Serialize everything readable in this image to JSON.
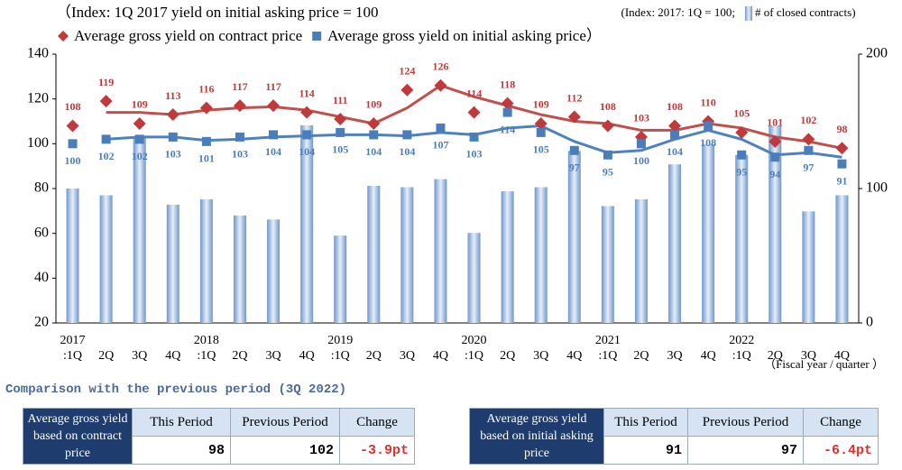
{
  "chart_data": {
    "type": "bar-line",
    "subtitle": "（Index: 1Q 2017 yield on initial asking price = 100",
    "note": "(Index: 2017: 1Q = 100;",
    "x_label": "（Fiscal year / quarter ）",
    "categories": [
      ":1Q",
      "2Q",
      "3Q",
      "4Q",
      ":1Q",
      "2Q",
      "3Q",
      "4Q",
      ":1Q",
      "2Q",
      "3Q",
      "4Q",
      ":1Q",
      "2Q",
      "3Q",
      "4Q",
      ":1Q",
      "2Q",
      "3Q",
      "4Q",
      ":1Q",
      "2Q",
      "3Q",
      "4Q"
    ],
    "year_labels": [
      "2017",
      null,
      null,
      null,
      "2018",
      null,
      null,
      null,
      "2019",
      null,
      null,
      null,
      "2020",
      null,
      null,
      null,
      "2021",
      null,
      null,
      null,
      "2022",
      null,
      null,
      null
    ],
    "series": [
      {
        "name": "# of closed contracts)",
        "color": "#8fb1dc",
        "axis": "y2",
        "marker": "bar",
        "values": [
          100,
          95,
          138,
          88,
          92,
          80,
          77,
          147,
          65,
          102,
          101,
          107,
          67,
          98,
          101,
          128,
          87,
          92,
          118,
          133,
          125,
          147,
          83,
          95
        ]
      },
      {
        "name": "Average gross yield on contract price",
        "color": "#c0393b",
        "marker": "diamond",
        "values": [
          108,
          119,
          109,
          113,
          116,
          117,
          117,
          114,
          111,
          109,
          124,
          126,
          114,
          118,
          109,
          112,
          108,
          103,
          108,
          110,
          105,
          101,
          102,
          98
        ]
      },
      {
        "name": "Average gross yield on initial asking price）",
        "color": "#4a7ebb",
        "marker": "square",
        "values": [
          100,
          102,
          102,
          103,
          101,
          103,
          104,
          104,
          105,
          104,
          104,
          107,
          103,
          114,
          105,
          97,
          95,
          100,
          104,
          108,
          95,
          94,
          97,
          91
        ]
      }
    ],
    "trend_lines": [
      {
        "color": "#c0504d",
        "values": [
          null,
          114,
          114,
          113,
          115,
          116,
          116.5,
          115,
          112,
          109,
          116,
          126,
          121,
          117,
          113,
          110,
          109,
          106,
          106,
          109,
          107,
          103,
          101,
          98
        ]
      },
      {
        "color": "#4f81bd",
        "values": [
          null,
          102,
          103,
          103,
          101.5,
          102,
          103,
          103.5,
          104,
          104,
          103.5,
          105,
          104,
          107,
          108,
          101,
          96,
          97,
          102,
          106,
          102,
          95,
          96,
          94
        ]
      }
    ],
    "ylim": [
      20,
      140
    ],
    "yticks": [
      20,
      40,
      60,
      80,
      100,
      120,
      140
    ],
    "y2lim": [
      0,
      200
    ],
    "y2ticks": [
      0,
      100,
      200
    ],
    "grid": false
  },
  "comparison": {
    "title": "Comparison with the previous period (3Q 2022)",
    "tables": [
      {
        "row_header": "Average gross yield based on contract price",
        "columns": [
          "This Period",
          "Previous Period",
          "Change"
        ],
        "values": [
          98,
          102,
          "-3.9pt"
        ]
      },
      {
        "row_header": "Average gross yield based on initial asking price",
        "columns": [
          "This Period",
          "Previous Period",
          "Change"
        ],
        "values": [
          91,
          97,
          "-6.4pt"
        ]
      }
    ]
  }
}
